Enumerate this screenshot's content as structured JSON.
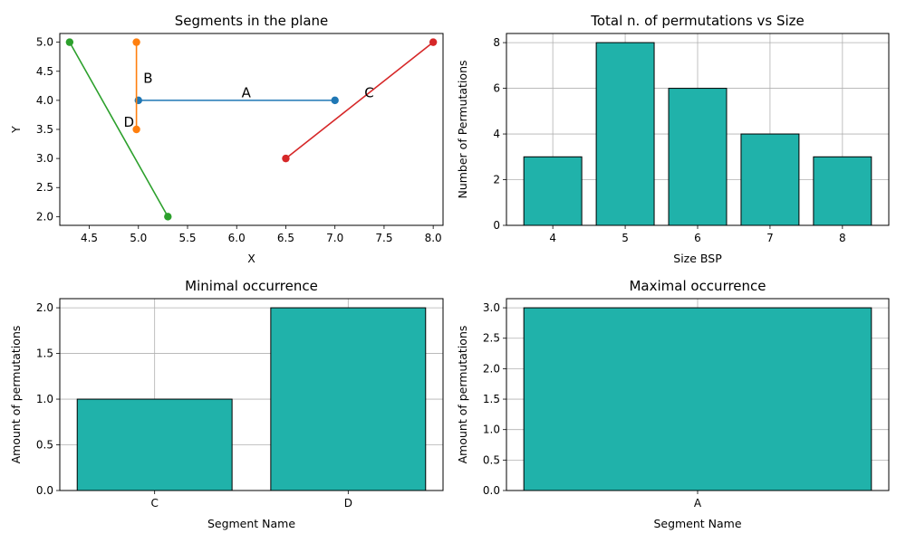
{
  "chart_data": [
    {
      "type": "line",
      "title": "Segments in the plane",
      "xlabel": "X",
      "ylabel": "Y",
      "xlim": [
        4.2,
        8.1
      ],
      "ylim": [
        1.85,
        5.15
      ],
      "xticks": [
        "4.5",
        "5.0",
        "5.5",
        "6.0",
        "6.5",
        "7.0",
        "7.5",
        "8.0"
      ],
      "yticks": [
        "2.0",
        "2.5",
        "3.0",
        "3.5",
        "4.0",
        "4.5",
        "5.0"
      ],
      "grid": false,
      "series": [
        {
          "name": "A",
          "color": "#1f77b4",
          "points": [
            [
              5.0,
              4.0
            ],
            [
              7.0,
              4.0
            ]
          ],
          "label_at": [
            6.05,
            4.05
          ]
        },
        {
          "name": "B",
          "color": "#ff7f0e",
          "points": [
            [
              4.98,
              5.0
            ],
            [
              4.98,
              3.5
            ]
          ],
          "label_at": [
            5.05,
            4.3
          ]
        },
        {
          "name": "C",
          "color": "#d62728",
          "points": [
            [
              6.5,
              3.0
            ],
            [
              8.0,
              5.0
            ]
          ],
          "label_at": [
            7.3,
            4.05
          ]
        },
        {
          "name": "D",
          "color": "#2ca02c",
          "points": [
            [
              4.3,
              5.0
            ],
            [
              5.3,
              2.0
            ]
          ],
          "label_at": [
            4.85,
            3.55
          ]
        }
      ]
    },
    {
      "type": "bar",
      "title": "Total n. of permutations vs Size",
      "xlabel": "Size BSP",
      "ylabel": "Number of Permutations",
      "categories": [
        "4",
        "5",
        "6",
        "7",
        "8"
      ],
      "values": [
        3,
        8,
        6,
        4,
        3
      ],
      "ylim": [
        0,
        8.4
      ],
      "yticks": [
        "0",
        "2",
        "4",
        "6",
        "8"
      ],
      "grid": true,
      "bar_color": "#20b2aa"
    },
    {
      "type": "bar",
      "title": "Minimal occurrence",
      "xlabel": "Segment Name",
      "ylabel": "Amount of permutations",
      "categories": [
        "C",
        "D"
      ],
      "values": [
        1,
        2
      ],
      "ylim": [
        0,
        2.1
      ],
      "yticks": [
        "0.0",
        "0.5",
        "1.0",
        "1.5",
        "2.0"
      ],
      "grid": true,
      "bar_color": "#20b2aa"
    },
    {
      "type": "bar",
      "title": "Maximal occurrence",
      "xlabel": "Segment Name",
      "ylabel": "Amount of permutations",
      "categories": [
        "A"
      ],
      "values": [
        3
      ],
      "ylim": [
        0,
        3.15
      ],
      "yticks": [
        "0.0",
        "0.5",
        "1.0",
        "1.5",
        "2.0",
        "2.5",
        "3.0"
      ],
      "grid": true,
      "bar_color": "#20b2aa"
    }
  ]
}
